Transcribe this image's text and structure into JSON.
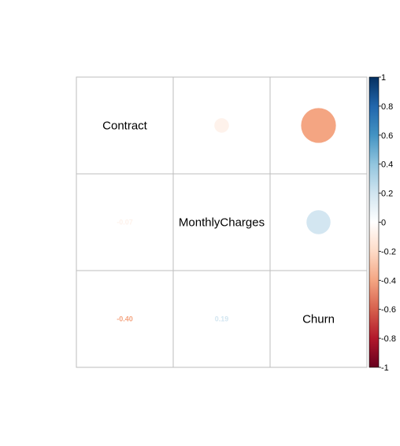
{
  "chart_data": {
    "type": "heatmap",
    "variables": [
      "Contract",
      "MonthlyCharges",
      "Churn"
    ],
    "upper_glyph": "circle",
    "lower_glyph": "number",
    "diagonal": "variable names",
    "correlations": [
      [
        1,
        -0.07,
        -0.4
      ],
      [
        -0.07,
        1,
        0.19
      ],
      [
        -0.4,
        0.19,
        1
      ]
    ],
    "lower_labels": [
      {
        "row": 1,
        "col": 0,
        "text": "-0.07"
      },
      {
        "row": 2,
        "col": 0,
        "text": "-0.40"
      },
      {
        "row": 2,
        "col": 1,
        "text": "0.19"
      }
    ],
    "colorbar": {
      "range": [
        -1,
        1
      ],
      "tick_labels": [
        "1",
        "0.8",
        "0.6",
        "0.4",
        "0.2",
        "0",
        "-0.2",
        "-0.4",
        "-0.6",
        "-0.8",
        "-1"
      ],
      "palette": [
        "#67001F",
        "#B2182B",
        "#D6604D",
        "#F4A582",
        "#FDDBC7",
        "#FFFFFF",
        "#D1E5F0",
        "#92C5DE",
        "#4393C3",
        "#2166AC",
        "#053061"
      ]
    },
    "grid": true
  }
}
